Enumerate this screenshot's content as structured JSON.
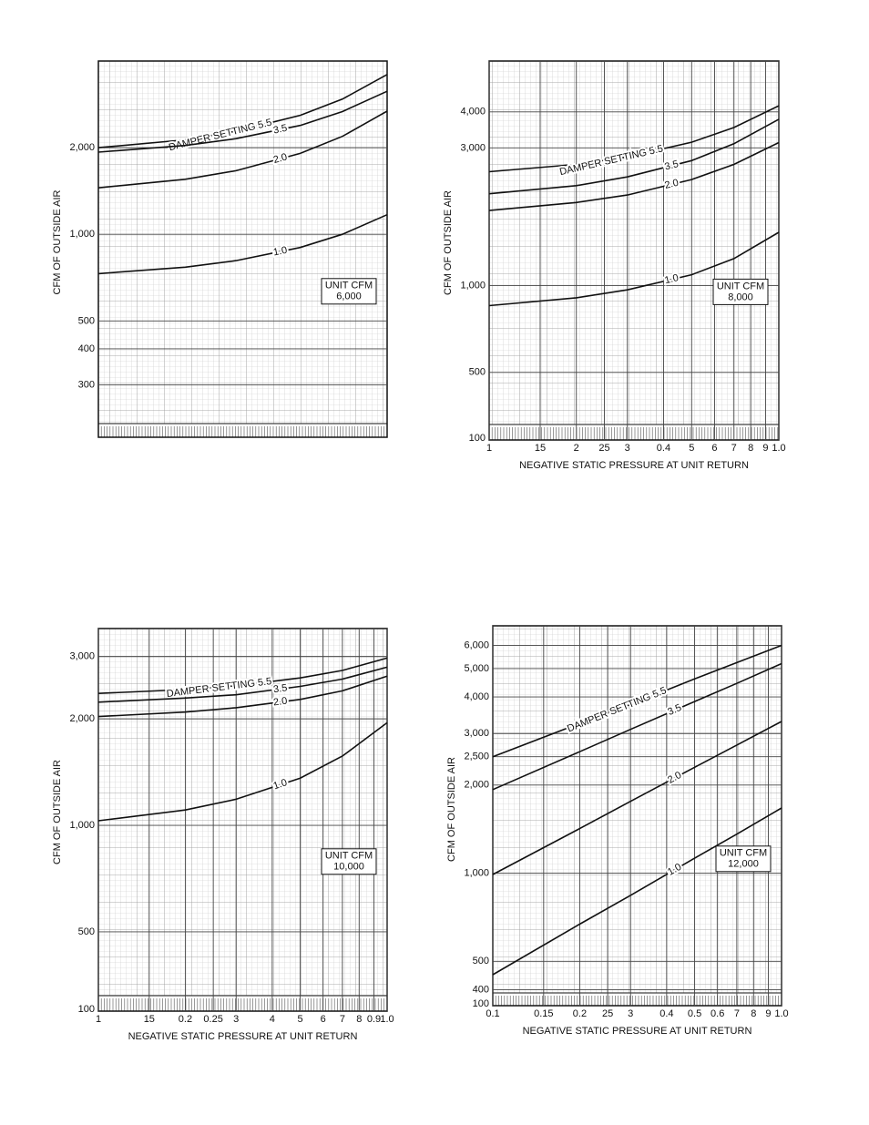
{
  "chart_data": [
    {
      "type": "line",
      "y_label": "CFM OF OUTSIDE AIR",
      "log_x": true,
      "log_y": true,
      "grid": true,
      "color": "#111111",
      "annotation": [
        "UNIT CFM",
        "6,000"
      ],
      "x": [
        0.1,
        0.2,
        0.3,
        0.5,
        0.7,
        1.0
      ],
      "xlim": [
        0.1,
        1.0
      ],
      "ylim": [
        220,
        4000
      ],
      "yticks": [
        {
          "value": 2000,
          "label": "2,000"
        },
        {
          "value": 1000,
          "label": "1,000"
        },
        500,
        400,
        300
      ],
      "series": [
        {
          "name": "DAMPER SETTING 5.5",
          "values": [
            2000,
            2130,
            2280,
            2590,
            2950,
            3590
          ]
        },
        {
          "name": "3.5",
          "values": [
            1930,
            2036,
            2150,
            2390,
            2670,
            3140
          ]
        },
        {
          "name": "2.0",
          "values": [
            1450,
            1553,
            1663,
            1910,
            2190,
            2680
          ]
        },
        {
          "name": "1.0",
          "values": [
            730,
            769,
            810,
            900,
            1000,
            1170
          ]
        }
      ]
    },
    {
      "type": "line",
      "y_label": "CFM OF OUTSIDE AIR",
      "x_label": "NEGATIVE STATIC PRESSURE AT UNIT RETURN",
      "log_x": true,
      "log_y": true,
      "grid": true,
      "color": "#111111",
      "annotation": [
        "UNIT CFM",
        "8,000"
      ],
      "x": [
        0.1,
        0.2,
        0.3,
        0.5,
        0.7,
        1.0
      ],
      "xlim": [
        0.1,
        1.0
      ],
      "xticks": [
        {
          "value": 0.1,
          "label": "1"
        },
        {
          "value": 0.15,
          "label": "15"
        },
        {
          "value": 0.2,
          "label": "2"
        },
        {
          "value": 0.25,
          "label": "25"
        },
        {
          "value": 0.3,
          "label": "3"
        },
        0.4,
        {
          "value": 0.5,
          "label": "5"
        },
        {
          "value": 0.6,
          "label": "6"
        },
        {
          "value": 0.7,
          "label": "7"
        },
        {
          "value": 0.8,
          "label": "8"
        },
        {
          "value": 0.9,
          "label": "9"
        },
        {
          "value": 1.0,
          "label": "1.0"
        }
      ],
      "ylim": [
        330,
        6000
      ],
      "ybreak": 100,
      "yticks": [
        {
          "value": 4000,
          "label": "4,000"
        },
        {
          "value": 3000,
          "label": "3,000"
        },
        {
          "value": 1000,
          "label": "1,000"
        },
        500
      ],
      "series": [
        {
          "name": "DAMPER SETTING 5.5",
          "values": [
            2480,
            2630,
            2790,
            3140,
            3530,
            4200
          ]
        },
        {
          "name": "3.5",
          "values": [
            2080,
            2220,
            2380,
            2710,
            3100,
            3770
          ]
        },
        {
          "name": "2.0",
          "values": [
            1820,
            1940,
            2060,
            2330,
            2630,
            3130
          ]
        },
        {
          "name": "1.0",
          "values": [
            852,
            907,
            966,
            1090,
            1240,
            1530
          ]
        }
      ]
    },
    {
      "type": "line",
      "y_label": "CFM OF OUTSIDE AIR",
      "x_label": "NEGATIVE STATIC PRESSURE AT UNIT RETURN",
      "log_x": true,
      "log_y": true,
      "grid": true,
      "color": "#111111",
      "annotation": [
        "UNIT CFM",
        "10,000"
      ],
      "x": [
        0.1,
        0.2,
        0.3,
        0.5,
        0.7,
        1.0
      ],
      "xlim": [
        0.1,
        1.0
      ],
      "xticks": [
        {
          "value": 0.1,
          "label": "1"
        },
        {
          "value": 0.15,
          "label": "15"
        },
        0.2,
        0.25,
        {
          "value": 0.3,
          "label": "3"
        },
        {
          "value": 0.4,
          "label": "4"
        },
        {
          "value": 0.5,
          "label": "5"
        },
        {
          "value": 0.6,
          "label": "6"
        },
        {
          "value": 0.7,
          "label": "7"
        },
        {
          "value": 0.8,
          "label": "8"
        },
        0.9,
        {
          "value": 1.0,
          "label": "1.0"
        }
      ],
      "ylim": [
        330,
        3600
      ],
      "ybreak": 100,
      "yticks": [
        {
          "value": 3000,
          "label": "3,000"
        },
        {
          "value": 2000,
          "label": "2,000"
        },
        {
          "value": 1000,
          "label": "1,000"
        },
        500
      ],
      "series": [
        {
          "name": "DAMPER SETTING 5.5",
          "values": [
            2360,
            2420,
            2480,
            2610,
            2740,
            2970
          ]
        },
        {
          "name": "3.5",
          "values": [
            2230,
            2290,
            2340,
            2470,
            2590,
            2800
          ]
        },
        {
          "name": "2.0",
          "values": [
            2030,
            2090,
            2150,
            2270,
            2400,
            2640
          ]
        },
        {
          "name": "1.0",
          "values": [
            1030,
            1105,
            1185,
            1360,
            1570,
            1950
          ]
        }
      ]
    },
    {
      "type": "line",
      "y_label": "CFM OF OUTSIDE AIR",
      "x_label": "NEGATIVE STATIC PRESSURE AT UNIT RETURN",
      "log_x": true,
      "log_y": true,
      "grid": true,
      "color": "#111111",
      "annotation": [
        "UNIT CFM",
        "12,000"
      ],
      "x": [
        0.1,
        0.2,
        0.3,
        0.5,
        0.7,
        1.0
      ],
      "xlim": [
        0.1,
        1.0
      ],
      "xticks": [
        0.1,
        0.15,
        0.2,
        {
          "value": 0.25,
          "label": "25"
        },
        {
          "value": 0.3,
          "label": "3"
        },
        0.4,
        0.5,
        0.6,
        {
          "value": 0.7,
          "label": "7"
        },
        {
          "value": 0.8,
          "label": "8"
        },
        {
          "value": 0.9,
          "label": "9"
        },
        {
          "value": 1.0,
          "label": "1.0"
        }
      ],
      "ylim": [
        390,
        7000
      ],
      "ybreak": 100,
      "yticks": [
        {
          "value": 6000,
          "label": "6,000"
        },
        {
          "value": 5000,
          "label": "5,000"
        },
        {
          "value": 4000,
          "label": "4,000"
        },
        {
          "value": 3000,
          "label": "3,000"
        },
        {
          "value": 2500,
          "label": "2,500"
        },
        {
          "value": 2000,
          "label": "2,000"
        },
        {
          "value": 1000,
          "label": "1,000"
        },
        500,
        400
      ],
      "series": [
        {
          "name": "DAMPER SETTING 5.5",
          "values": [
            2500,
            3250,
            3770,
            4610,
            5240,
            6000
          ]
        },
        {
          "name": "3.5",
          "values": [
            1930,
            2600,
            3100,
            3860,
            4450,
            5200
          ]
        },
        {
          "name": "2.0",
          "values": [
            990,
            1420,
            1760,
            2300,
            2740,
            3300
          ]
        },
        {
          "name": "1.0",
          "values": [
            450,
            670,
            840,
            1125,
            1360,
            1670
          ]
        }
      ]
    }
  ]
}
